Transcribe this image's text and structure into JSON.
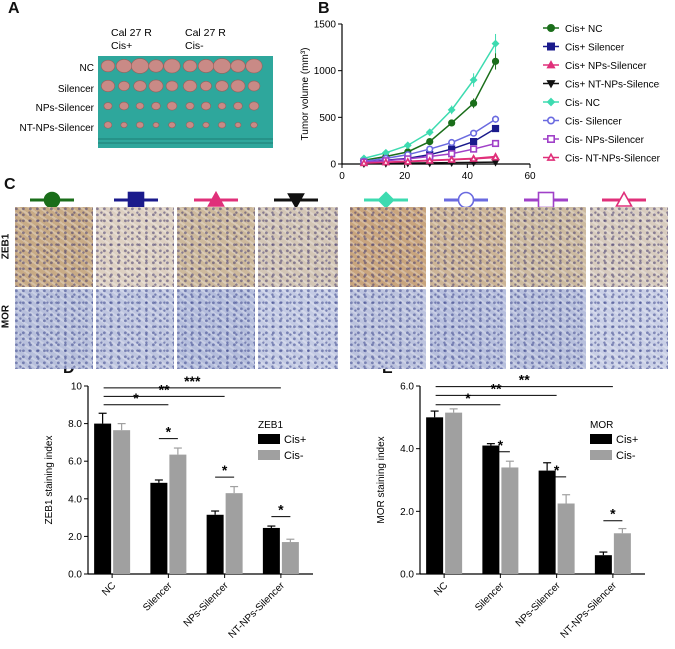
{
  "panels": {
    "A": "A",
    "B": "B",
    "C": "C",
    "D": "D",
    "E": "E"
  },
  "panel_a": {
    "col_header_1_line1": "Cal 27 R",
    "col_header_1_line2": "Cis+",
    "col_header_2_line1": "Cal 27 R",
    "col_header_2_line2": "Cis-",
    "row_labels": [
      "NC",
      "Silencer",
      "NPs-Silencer",
      "NT-NPs-Silencer"
    ],
    "colors": {
      "background": "#2ea79c",
      "tumor": "#c98a86"
    }
  },
  "panel_c": {
    "row_labels": [
      "ZEB1",
      "MOR"
    ],
    "marker_icons": [
      "circle-icon",
      "square-icon",
      "triangle-up-icon",
      "triangle-down-icon",
      "diamond-icon",
      "open-circle-icon",
      "open-square-icon",
      "open-triangle-icon"
    ]
  },
  "chart_data": [
    {
      "type": "line",
      "title": "",
      "xlabel": "",
      "ylabel": "Tumor volume (mm³)",
      "xlim": [
        0,
        60
      ],
      "ylim": [
        0,
        1500
      ],
      "xticks": [
        0,
        20,
        40,
        60
      ],
      "yticks": [
        0,
        500,
        1000,
        1500
      ],
      "x": [
        7,
        14,
        21,
        28,
        35,
        42,
        49
      ],
      "legend_position": "right",
      "series": [
        {
          "name": "Cis+ NC",
          "color": "#1a6e1a",
          "marker": "circle",
          "filled": true,
          "values": [
            40,
            80,
            130,
            240,
            440,
            650,
            1100
          ]
        },
        {
          "name": "Cis+ Silencer",
          "color": "#1a1a8c",
          "marker": "square",
          "filled": true,
          "values": [
            20,
            40,
            60,
            100,
            160,
            240,
            380
          ]
        },
        {
          "name": "Cis+ NPs-Silencer",
          "color": "#e0307a",
          "marker": "triangle-up",
          "filled": true,
          "values": [
            10,
            20,
            30,
            40,
            50,
            60,
            80
          ]
        },
        {
          "name": "Cis+ NT-NPs-Silencer",
          "color": "#111111",
          "marker": "triangle-down",
          "filled": true,
          "values": [
            5,
            8,
            10,
            12,
            15,
            18,
            20
          ]
        },
        {
          "name": "Cis- NC",
          "color": "#3ddbb0",
          "marker": "diamond",
          "filled": true,
          "values": [
            60,
            120,
            200,
            340,
            580,
            900,
            1290
          ]
        },
        {
          "name": "Cis- Silencer",
          "color": "#6a6ae0",
          "marker": "circle",
          "filled": false,
          "values": [
            30,
            60,
            100,
            160,
            230,
            330,
            480
          ]
        },
        {
          "name": "Cis- NPs-Silencer",
          "color": "#a040c8",
          "marker": "square",
          "filled": false,
          "values": [
            20,
            35,
            55,
            80,
            110,
            160,
            220
          ]
        },
        {
          "name": "Cis- NT-NPs-Silencer",
          "color": "#e0307a",
          "marker": "triangle-up",
          "filled": false,
          "values": [
            10,
            18,
            25,
            35,
            45,
            55,
            70
          ]
        }
      ]
    },
    {
      "type": "bar",
      "title": "",
      "xlabel": "",
      "ylabel": "ZEB1 staining index",
      "ylim": [
        0,
        10
      ],
      "yticks": [
        "0.0",
        "2.0",
        "4.0",
        "6.0",
        "8.0",
        "10"
      ],
      "categories": [
        "NC",
        "Silencer",
        "NPs-Silencer",
        "NT-NPs-Silencer"
      ],
      "legend_title": "ZEB1",
      "legend_position": "top-right",
      "series": [
        {
          "name": "Cis+",
          "color": "#000000",
          "values": [
            8.0,
            4.85,
            3.15,
            2.45
          ],
          "errors": [
            0.55,
            0.15,
            0.2,
            0.1
          ]
        },
        {
          "name": "Cis-",
          "color": "#a0a0a0",
          "values": [
            7.65,
            6.35,
            4.3,
            1.7
          ],
          "errors": [
            0.35,
            0.35,
            0.35,
            0.15
          ]
        }
      ],
      "significance": [
        {
          "label": "*",
          "from": 0,
          "to": 1,
          "level": 9.0
        },
        {
          "label": "**",
          "from": 0,
          "to": 2,
          "level": 9.45
        },
        {
          "label": "***",
          "from": 0,
          "to": 3,
          "level": 9.9
        },
        {
          "label": "*",
          "from": 1,
          "to": 1,
          "level": 7.2,
          "within": true
        },
        {
          "label": "*",
          "from": 2,
          "to": 2,
          "level": 5.15,
          "within": true
        },
        {
          "label": "*",
          "from": 3,
          "to": 3,
          "level": 3.05,
          "within": true
        }
      ]
    },
    {
      "type": "bar",
      "title": "",
      "xlabel": "",
      "ylabel": "MOR staining index",
      "ylim": [
        0,
        6
      ],
      "yticks": [
        "0.0",
        "2.0",
        "4.0",
        "6.0"
      ],
      "categories": [
        "NC",
        "Silencer",
        "NPs-Silencer",
        "NT-NPs-Silencer"
      ],
      "legend_title": "MOR",
      "legend_position": "top-right",
      "series": [
        {
          "name": "Cis+",
          "color": "#000000",
          "values": [
            5.0,
            4.1,
            3.3,
            0.6
          ],
          "errors": [
            0.2,
            0.06,
            0.25,
            0.1
          ]
        },
        {
          "name": "Cis-",
          "color": "#a0a0a0",
          "values": [
            5.15,
            3.4,
            2.25,
            1.3
          ],
          "errors": [
            0.12,
            0.2,
            0.28,
            0.15
          ]
        }
      ],
      "significance": [
        {
          "label": "*",
          "from": 0,
          "to": 1,
          "level": 5.4
        },
        {
          "label": "**",
          "from": 0,
          "to": 2,
          "level": 5.7
        },
        {
          "label": "**",
          "from": 0,
          "to": 3,
          "level": 5.98
        },
        {
          "label": "*",
          "from": 1,
          "to": 1,
          "level": 3.9,
          "within": true
        },
        {
          "label": "*",
          "from": 2,
          "to": 2,
          "level": 3.1,
          "within": true
        },
        {
          "label": "*",
          "from": 3,
          "to": 3,
          "level": 1.7,
          "within": true
        }
      ]
    }
  ]
}
